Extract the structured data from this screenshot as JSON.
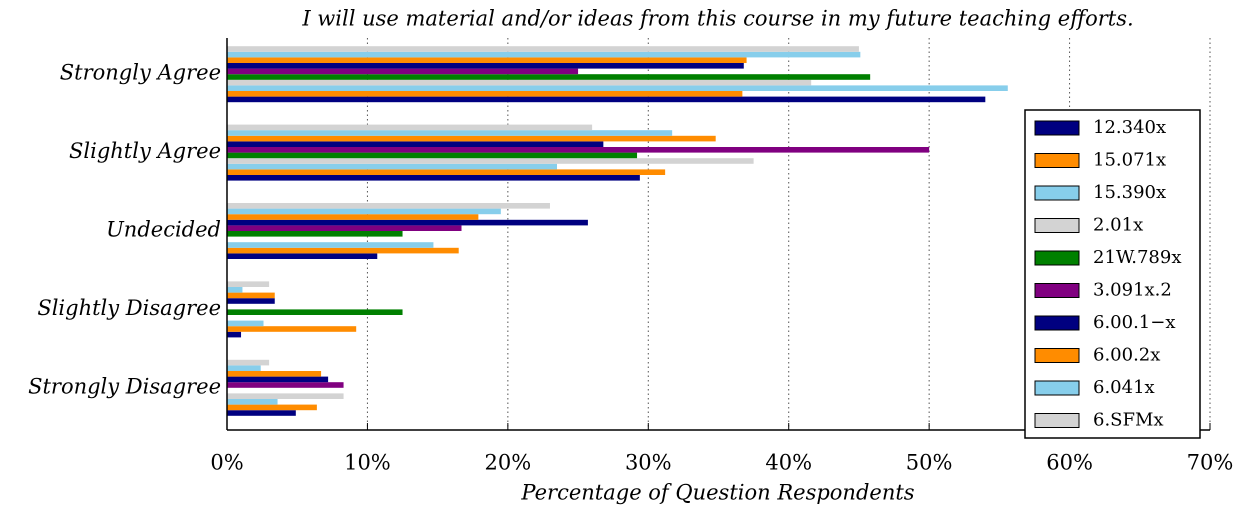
{
  "chart_data": {
    "type": "hbar",
    "title": "I will use material and/or ideas from this course in my future teaching efforts.",
    "xlabel": "Percentage of Question Respondents",
    "categories": [
      "Strongly Agree",
      "Slightly Agree",
      "Undecided",
      "Slightly Disagree",
      "Strongly Disagree"
    ],
    "series": [
      {
        "name": "12.340x",
        "color": "#000080",
        "values": [
          54,
          29.4,
          10.7,
          1,
          4.9
        ]
      },
      {
        "name": "15.071x",
        "color": "#ff8c00",
        "values": [
          36.7,
          31.2,
          16.5,
          9.2,
          6.4
        ]
      },
      {
        "name": "15.390x",
        "color": "#87ceeb",
        "values": [
          55.6,
          23.5,
          14.7,
          2.6,
          3.6
        ]
      },
      {
        "name": "2.01x",
        "color": "#d3d3d3",
        "values": [
          41.6,
          37.5,
          0,
          0,
          8.3
        ]
      },
      {
        "name": "21W.789x",
        "color": "#008000",
        "values": [
          45.8,
          29.2,
          12.5,
          12.5,
          0
        ]
      },
      {
        "name": "3.091x.2",
        "color": "#800080",
        "values": [
          25,
          50,
          16.7,
          0,
          8.3
        ]
      },
      {
        "name": "6.00.1−x",
        "color": "#000080",
        "values": [
          36.8,
          26.8,
          25.7,
          3.4,
          7.2
        ]
      },
      {
        "name": "6.00.2x",
        "color": "#ff8c00",
        "values": [
          37,
          34.8,
          17.9,
          3.4,
          6.7
        ]
      },
      {
        "name": "6.041x",
        "color": "#87ceeb",
        "values": [
          45.1,
          31.7,
          19.5,
          1.1,
          2.4
        ]
      },
      {
        "name": "6.SFMx",
        "color": "#d3d3d3",
        "values": [
          45,
          26,
          23,
          3,
          3
        ]
      }
    ],
    "xlim": [
      0,
      70
    ],
    "xticks": [
      {
        "value": 0,
        "label": "0%"
      },
      {
        "value": 10,
        "label": "10%"
      },
      {
        "value": 20,
        "label": "20%"
      },
      {
        "value": 30,
        "label": "30%"
      },
      {
        "value": 40,
        "label": "40%"
      },
      {
        "value": 50,
        "label": "50%"
      },
      {
        "value": 60,
        "label": "60%"
      },
      {
        "value": 70,
        "label": "70%"
      }
    ],
    "grid": true
  }
}
